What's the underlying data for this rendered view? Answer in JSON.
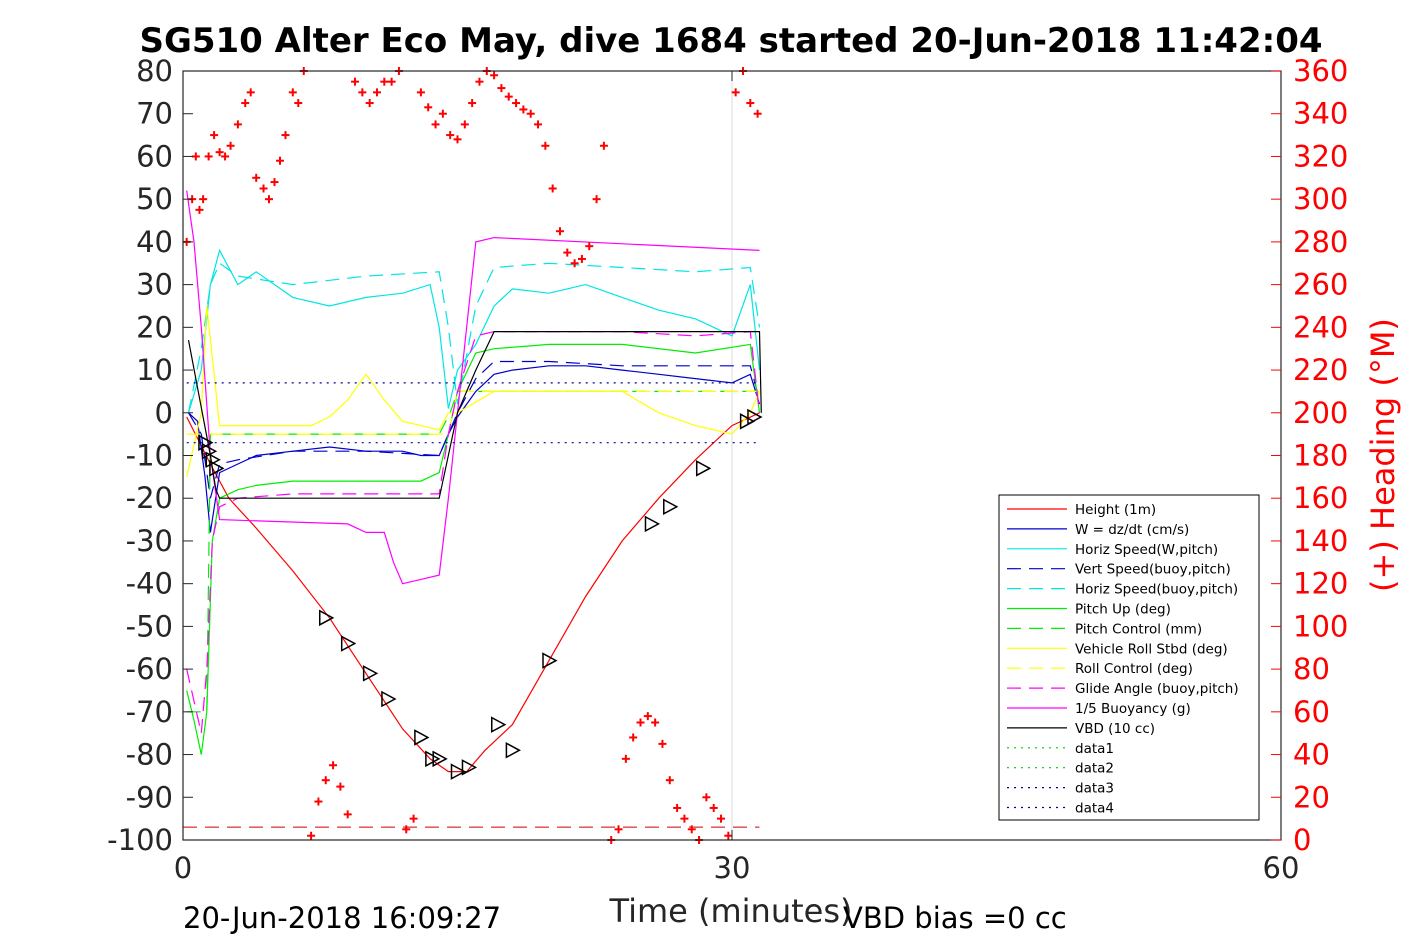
{
  "chart_data": {
    "type": "line",
    "title": "SG510 Alter Eco May, dive 1684 started 20-Jun-2018 11:42:04",
    "xlabel": "Time (minutes)",
    "ylabel": "",
    "y2label": "(+) Heading (°M)",
    "xlim": [
      0,
      60
    ],
    "ylim": [
      -100,
      80
    ],
    "y2lim": [
      0,
      360
    ],
    "xticks": [
      0,
      30,
      60
    ],
    "yticks": [
      -100,
      -90,
      -80,
      -70,
      -60,
      -50,
      -40,
      -30,
      -20,
      -10,
      0,
      10,
      20,
      30,
      40,
      50,
      60,
      70,
      80
    ],
    "y2ticks": [
      0,
      20,
      40,
      60,
      80,
      100,
      120,
      140,
      160,
      180,
      200,
      220,
      240,
      260,
      280,
      300,
      320,
      340,
      360
    ],
    "grid": "x only at 30",
    "legend_position": "bottom-right",
    "footer_left": "20-Jun-2018 16:09:27",
    "footer_right": "VBD bias =0 cc",
    "series": [
      {
        "name": "Height (1m)",
        "color": "#ff0000",
        "style": "solid",
        "x": [
          0.2,
          0.8,
          1.5,
          2.5,
          4,
          6,
          8,
          10,
          12,
          13.5,
          14.5,
          15.5,
          16.5,
          18,
          20,
          22,
          24,
          26,
          28,
          30,
          31.5
        ],
        "y": [
          -1,
          -6,
          -12,
          -20,
          -27,
          -37,
          -48,
          -61,
          -74,
          -81,
          -84,
          -84,
          -79,
          -73,
          -58,
          -43,
          -30,
          -20,
          -11,
          -3,
          0
        ]
      },
      {
        "name": "W = dz/dt (cm/s)",
        "color": "#0000cc",
        "style": "solid",
        "x": [
          0.3,
          0.8,
          1.2,
          1.5,
          2,
          3,
          4,
          6,
          8,
          10,
          12,
          13,
          14,
          14.5,
          15,
          16,
          17,
          18,
          20,
          22,
          24,
          26,
          28,
          30,
          31,
          31.5
        ],
        "y": [
          0,
          -2,
          -15,
          -28,
          -14,
          -12,
          -10,
          -9,
          -8,
          -9,
          -9,
          -10,
          -10,
          -5,
          -1,
          5,
          9,
          10,
          11,
          11,
          10,
          9,
          8,
          7,
          9,
          2
        ]
      },
      {
        "name": "Horiz Speed(W,pitch)",
        "color": "#00e5e5",
        "style": "solid",
        "x": [
          0.3,
          1,
          1.5,
          2,
          3,
          4,
          6,
          8,
          10,
          12,
          13.5,
          14,
          14.5,
          15,
          16,
          17,
          18,
          20,
          22,
          24,
          26,
          28,
          30,
          31,
          31.5
        ],
        "y": [
          0,
          10,
          30,
          38,
          30,
          33,
          27,
          25,
          27,
          28,
          30,
          20,
          1,
          10,
          16,
          25,
          29,
          28,
          30,
          27,
          24,
          22,
          18,
          30,
          10
        ]
      },
      {
        "name": "Vert Speed(buoy,pitch)",
        "color": "#0000cc",
        "style": "dashed",
        "x": [
          0.3,
          1,
          1.5,
          2,
          3,
          6,
          10,
          14,
          14.5,
          15,
          16,
          17,
          20,
          24,
          28,
          31,
          31.5
        ],
        "y": [
          0,
          -5,
          -20,
          -12,
          -11,
          -9,
          -9,
          -10,
          -5,
          0,
          8,
          12,
          12,
          11,
          11,
          11,
          3
        ]
      },
      {
        "name": "Horiz Speed(buoy,pitch)",
        "color": "#00e5e5",
        "style": "dashed",
        "x": [
          0.3,
          1,
          1.5,
          2,
          3,
          6,
          10,
          14,
          14.5,
          15,
          16,
          17,
          20,
          24,
          28,
          31,
          31.5
        ],
        "y": [
          0,
          15,
          30,
          35,
          32,
          30,
          32,
          33,
          20,
          2,
          25,
          34,
          35,
          34,
          33,
          34,
          20
        ]
      },
      {
        "name": "Pitch Up (deg)",
        "color": "#00ee00",
        "style": "solid",
        "x": [
          0.2,
          0.6,
          1,
          1.3,
          1.6,
          2,
          3,
          4,
          6,
          10,
          13,
          14,
          14.5,
          15,
          16,
          17,
          20,
          24,
          28,
          31,
          31.5
        ],
        "y": [
          -65,
          -72,
          -80,
          -70,
          -30,
          -20,
          -18,
          -17,
          -16,
          -16,
          -16,
          -14,
          -5,
          5,
          14,
          15,
          16,
          16,
          14,
          16,
          0
        ]
      },
      {
        "name": "Pitch Control (mm)",
        "color": "#00ee00",
        "style": "dashed",
        "x": [
          0.2,
          1.3,
          1.5,
          14,
          14.6,
          15,
          31.5
        ],
        "y": [
          -70,
          -70,
          -5,
          -5,
          0,
          5,
          5
        ]
      },
      {
        "name": "Vehicle Roll Stbd (deg)",
        "color": "#ffff00",
        "style": "solid",
        "x": [
          0.2,
          1,
          1.3,
          2,
          4,
          7,
          8,
          9,
          10,
          11,
          12,
          13,
          14,
          14.5,
          15,
          17,
          20,
          24,
          26,
          28,
          30,
          31,
          31.5
        ],
        "y": [
          -15,
          0,
          25,
          -3,
          -3,
          -3,
          -1,
          3,
          9,
          3,
          -2,
          -3,
          -4,
          0,
          0,
          5,
          5,
          5,
          0,
          -3,
          -5,
          0,
          5
        ]
      },
      {
        "name": "Roll Control (deg)",
        "color": "#ffff00",
        "style": "dashed",
        "x": [
          0.2,
          14.5,
          15,
          31.5
        ],
        "y": [
          -5,
          -5,
          5,
          5
        ]
      },
      {
        "name": "Glide Angle (buoy,pitch)",
        "color": "#ff00ff",
        "style": "dashed",
        "x": [
          0.2,
          1,
          1.3,
          1.6,
          2,
          3,
          6,
          10,
          14,
          14.5,
          15,
          16,
          17,
          20,
          24,
          28,
          31,
          31.5
        ],
        "y": [
          -60,
          -75,
          -60,
          -30,
          -22,
          -20,
          -19,
          -19,
          -19,
          -5,
          5,
          18,
          19,
          19,
          19,
          18,
          19,
          0
        ]
      },
      {
        "name": "1/5 Buoyancy (g)",
        "color": "#ff00ff",
        "style": "solid",
        "x": [
          0.2,
          0.6,
          1,
          1.5,
          2,
          9,
          10,
          11,
          11.5,
          12,
          13,
          14,
          14.5,
          15,
          16,
          17,
          31.5
        ],
        "y": [
          52,
          40,
          20,
          -10,
          -25,
          -26,
          -28,
          -28,
          -35,
          -40,
          -39,
          -38,
          -20,
          0,
          40,
          41,
          38
        ]
      },
      {
        "name": "VBD (10 cc)",
        "color": "#000000",
        "style": "solid",
        "x": [
          0.3,
          1.5,
          1.8,
          2,
          14,
          15,
          16,
          17,
          31.5,
          31.6
        ],
        "y": [
          17,
          -10,
          -18,
          -20,
          -20,
          0,
          10,
          19,
          19,
          0
        ]
      },
      {
        "name": "data1",
        "color": "#00cc00",
        "style": "dotted",
        "x": [],
        "y": []
      },
      {
        "name": "data2",
        "color": "#00cc00",
        "style": "dotted",
        "x": [],
        "y": []
      },
      {
        "name": "data3",
        "color": "#000099",
        "style": "dotted",
        "x": [
          0.2,
          31.5
        ],
        "y": [
          7,
          7
        ]
      },
      {
        "name": "data4",
        "color": "#000099",
        "style": "dotted",
        "x": [
          0.2,
          31.5
        ],
        "y": [
          -7,
          -7
        ]
      }
    ],
    "red_dashed_line": {
      "x": [
        0,
        31.5
      ],
      "y2": 6
    },
    "heading_points": {
      "color": "#ff0000",
      "marker": "+",
      "x": [
        0.2,
        0.5,
        0.7,
        0.9,
        1.1,
        1.4,
        1.7,
        2.0,
        2.3,
        2.6,
        3.0,
        3.4,
        3.7,
        4.0,
        4.4,
        4.7,
        5.0,
        5.3,
        5.6,
        6.0,
        6.3,
        6.6,
        7.0,
        7.4,
        7.8,
        8.2,
        8.6,
        9.0,
        9.4,
        9.8,
        10.2,
        10.6,
        11.0,
        11.4,
        11.8,
        12.2,
        12.6,
        13.0,
        13.4,
        13.8,
        14.2,
        14.6,
        15.0,
        15.4,
        15.8,
        16.2,
        16.6,
        17.0,
        17.4,
        17.8,
        18.2,
        18.6,
        19.0,
        19.4,
        19.8,
        20.2,
        20.6,
        21.0,
        21.4,
        21.8,
        22.2,
        22.6,
        23.0,
        23.4,
        23.8,
        24.2,
        24.6,
        25.0,
        25.4,
        25.8,
        26.2,
        26.6,
        27.0,
        27.4,
        27.8,
        28.2,
        28.6,
        29.0,
        29.4,
        29.8,
        30.2,
        30.6,
        31.0,
        31.4
      ],
      "y": [
        280,
        300,
        320,
        295,
        300,
        320,
        330,
        322,
        320,
        325,
        335,
        345,
        350,
        310,
        305,
        300,
        308,
        318,
        330,
        350,
        345,
        360,
        2,
        18,
        28,
        35,
        25,
        12,
        355,
        350,
        345,
        350,
        355,
        355,
        360,
        5,
        10,
        350,
        343,
        335,
        340,
        330,
        328,
        335,
        345,
        355,
        360,
        358,
        352,
        348,
        345,
        342,
        340,
        335,
        325,
        305,
        285,
        275,
        270,
        272,
        278,
        300,
        325,
        0,
        5,
        38,
        48,
        55,
        58,
        55,
        45,
        28,
        15,
        10,
        5,
        0,
        20,
        15,
        10,
        2,
        350,
        360,
        345,
        340
      ]
    },
    "depth_markers": {
      "color": "#000000",
      "marker": "triangle-right",
      "x": [
        1.2,
        1.4,
        1.6,
        1.8,
        7.8,
        9.0,
        10.2,
        11.2,
        13.0,
        13.6,
        14.0,
        15.0,
        15.6,
        17.2,
        18.0,
        20.0,
        25.6,
        26.6,
        28.4,
        30.8,
        31.2
      ],
      "y": [
        -7,
        -9,
        -11,
        -13,
        -48,
        -54,
        -61,
        -67,
        -76,
        -81,
        -81,
        -84,
        -83,
        -73,
        -79,
        -58,
        -26,
        -22,
        -13,
        -2,
        -1
      ]
    }
  },
  "legend": {
    "entries": [
      "Height (1m)",
      "W = dz/dt (cm/s)",
      "Horiz Speed(W,pitch)",
      "Vert Speed(buoy,pitch)",
      "Horiz Speed(buoy,pitch)",
      "Pitch Up (deg)",
      "Pitch Control (mm)",
      "Vehicle Roll Stbd (deg)",
      "Roll Control (deg)",
      "Glide Angle (buoy,pitch)",
      "1/5 Buoyancy (g)",
      "VBD (10 cc)",
      "data1",
      "data2",
      "data3",
      "data4"
    ]
  }
}
